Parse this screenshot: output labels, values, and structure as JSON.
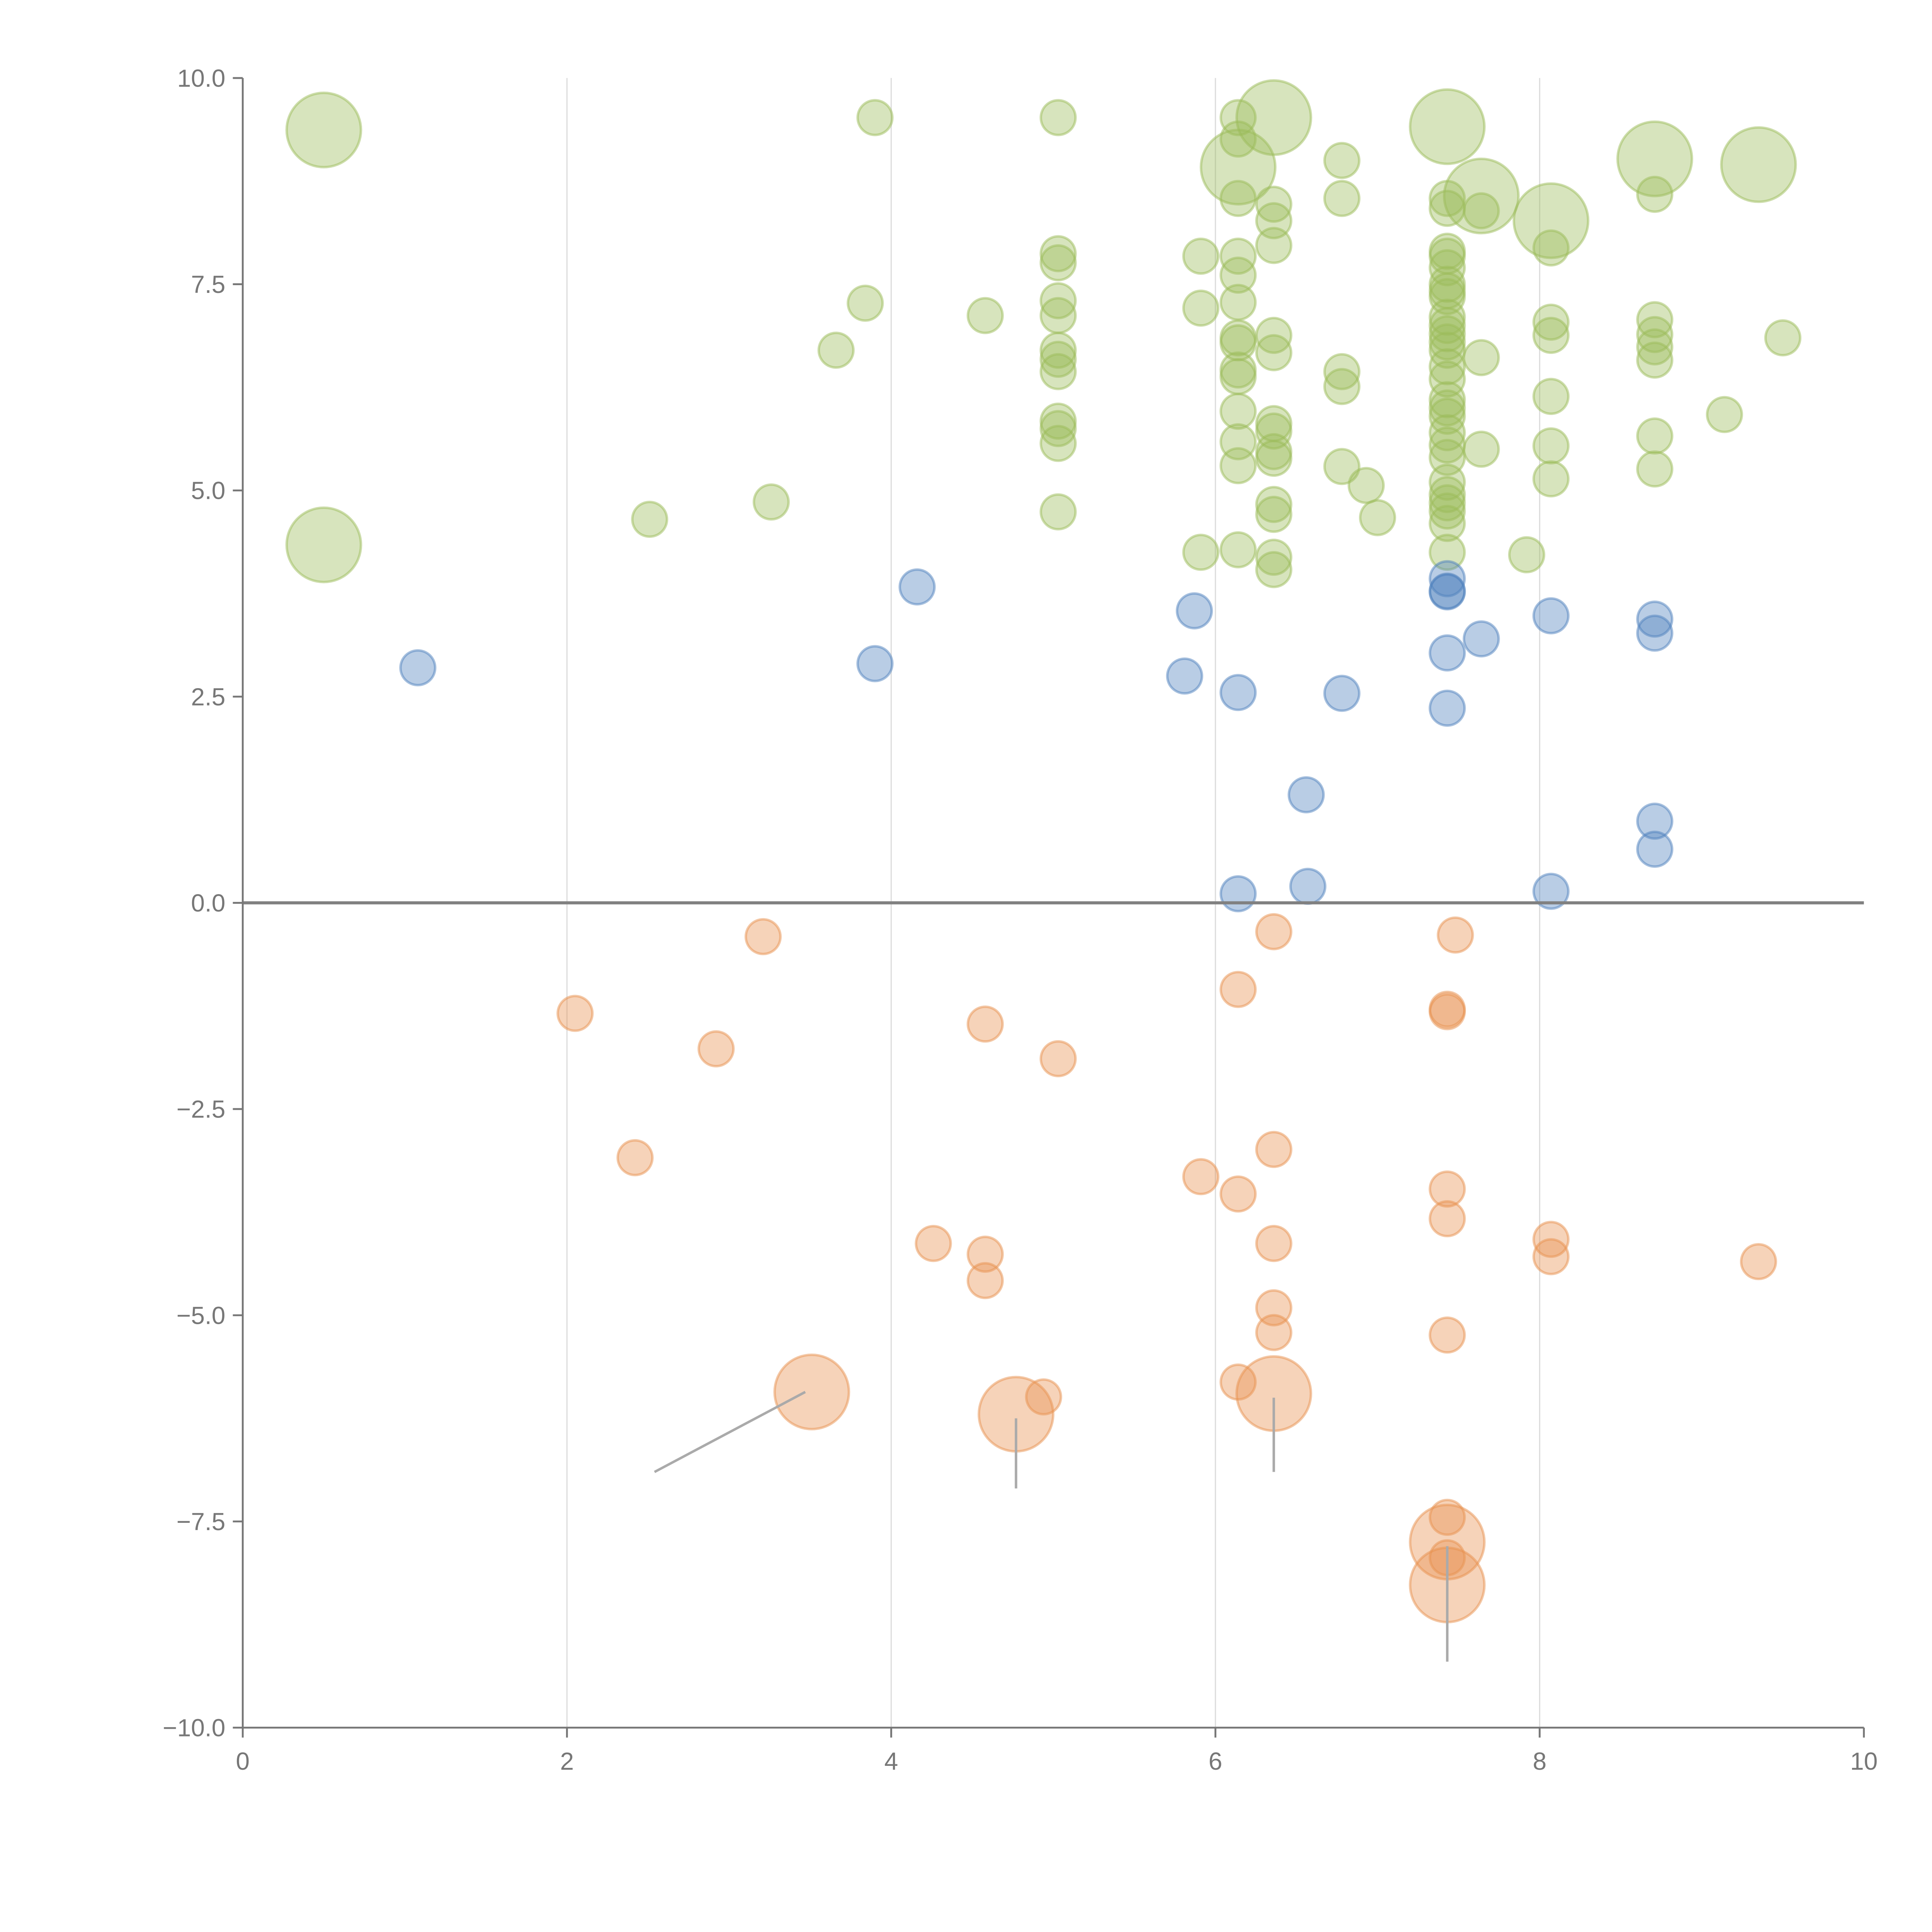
{
  "chart_data": {
    "type": "scatter",
    "title": "",
    "xlabel": "",
    "ylabel": "",
    "xlim": [
      0,
      10
    ],
    "ylim": [
      -10,
      10
    ],
    "grid": "vertical",
    "x_ticks": [
      "0",
      "2",
      "4",
      "6",
      "8",
      "10"
    ],
    "x_tick_values": [
      0,
      2,
      4,
      6,
      8,
      10
    ],
    "y_ticks": [
      "10.0",
      "7.5",
      "5.0",
      "2.5",
      "0.0",
      "−2.5",
      "−5.0",
      "−7.5",
      "−10.0"
    ],
    "y_tick_values": [
      10,
      7.5,
      5,
      2.5,
      0,
      -2.5,
      -5,
      -7.5,
      -10
    ],
    "point_format": "[x, y, size_class (1=small, 2=large)]",
    "series": [
      {
        "name": "green",
        "color": "#9BBB59",
        "points": [
          [
            0.5,
            9.37,
            2
          ],
          [
            0.5,
            4.34,
            2
          ],
          [
            6.36,
            9.52,
            2
          ],
          [
            6.14,
            8.92,
            2
          ],
          [
            7.43,
            9.41,
            2
          ],
          [
            7.64,
            8.57,
            2
          ],
          [
            8.07,
            8.27,
            2
          ],
          [
            8.71,
            9.02,
            2
          ],
          [
            9.35,
            8.95,
            2
          ],
          [
            3.9,
            9.52,
            1
          ],
          [
            5.03,
            9.52,
            1
          ],
          [
            6.14,
            9.52,
            1
          ],
          [
            6.14,
            9.26,
            1
          ],
          [
            6.78,
            9.0,
            1
          ],
          [
            6.78,
            8.54,
            1
          ],
          [
            6.14,
            8.54,
            1
          ],
          [
            6.36,
            8.47,
            1
          ],
          [
            6.36,
            8.27,
            1
          ],
          [
            7.43,
            8.54,
            1
          ],
          [
            7.43,
            8.42,
            1
          ],
          [
            7.64,
            8.39,
            1
          ],
          [
            8.07,
            7.94,
            1
          ],
          [
            8.71,
            8.59,
            1
          ],
          [
            6.36,
            7.97,
            1
          ],
          [
            5.91,
            7.84,
            1
          ],
          [
            6.14,
            7.84,
            1
          ],
          [
            6.14,
            7.61,
            1
          ],
          [
            5.03,
            7.87,
            1
          ],
          [
            5.03,
            7.76,
            1
          ],
          [
            3.84,
            7.27,
            1
          ],
          [
            4.58,
            7.12,
            1
          ],
          [
            5.03,
            7.3,
            1
          ],
          [
            5.03,
            7.12,
            1
          ],
          [
            5.91,
            7.21,
            1
          ],
          [
            6.14,
            7.28,
            1
          ],
          [
            3.66,
            6.7,
            1
          ],
          [
            5.03,
            6.7,
            1
          ],
          [
            5.03,
            6.59,
            1
          ],
          [
            5.03,
            6.44,
            1
          ],
          [
            6.14,
            6.85,
            1
          ],
          [
            6.14,
            6.79,
            1
          ],
          [
            6.36,
            6.88,
            1
          ],
          [
            6.36,
            6.67,
            1
          ],
          [
            6.14,
            6.46,
            1
          ],
          [
            6.14,
            6.38,
            1
          ],
          [
            6.78,
            6.44,
            1
          ],
          [
            6.78,
            6.26,
            1
          ],
          [
            7.64,
            6.61,
            1
          ],
          [
            8.07,
            7.04,
            1
          ],
          [
            8.07,
            6.88,
            1
          ],
          [
            8.71,
            7.07,
            1
          ],
          [
            8.71,
            6.89,
            1
          ],
          [
            8.71,
            6.74,
            1
          ],
          [
            8.71,
            6.58,
            1
          ],
          [
            9.5,
            6.85,
            1
          ],
          [
            8.07,
            6.14,
            1
          ],
          [
            9.14,
            5.92,
            1
          ],
          [
            5.03,
            5.84,
            1
          ],
          [
            5.03,
            5.75,
            1
          ],
          [
            5.03,
            5.57,
            1
          ],
          [
            6.14,
            5.96,
            1
          ],
          [
            6.14,
            5.59,
            1
          ],
          [
            6.14,
            5.3,
            1
          ],
          [
            6.36,
            5.81,
            1
          ],
          [
            6.36,
            5.72,
            1
          ],
          [
            6.36,
            5.47,
            1
          ],
          [
            6.36,
            5.39,
            1
          ],
          [
            7.64,
            5.5,
            1
          ],
          [
            8.07,
            5.54,
            1
          ],
          [
            8.71,
            5.66,
            1
          ],
          [
            8.71,
            5.26,
            1
          ],
          [
            8.07,
            5.14,
            1
          ],
          [
            6.78,
            5.29,
            1
          ],
          [
            6.93,
            5.06,
            1
          ],
          [
            7.0,
            4.67,
            1
          ],
          [
            6.36,
            4.83,
            1
          ],
          [
            6.36,
            4.71,
            1
          ],
          [
            5.03,
            4.74,
            1
          ],
          [
            3.26,
            4.86,
            1
          ],
          [
            2.51,
            4.65,
            1
          ],
          [
            5.91,
            4.25,
            1
          ],
          [
            6.14,
            4.28,
            1
          ],
          [
            6.36,
            4.19,
            1
          ],
          [
            6.36,
            4.04,
            1
          ],
          [
            7.92,
            4.22,
            1
          ],
          [
            7.43,
            7.9,
            1
          ],
          [
            7.43,
            7.84,
            1
          ],
          [
            7.43,
            7.7,
            1
          ],
          [
            7.43,
            7.5,
            1
          ],
          [
            7.43,
            7.42,
            1
          ],
          [
            7.43,
            7.35,
            1
          ],
          [
            7.43,
            7.1,
            1
          ],
          [
            7.43,
            7.0,
            1
          ],
          [
            7.43,
            6.9,
            1
          ],
          [
            7.43,
            6.8,
            1
          ],
          [
            7.43,
            6.7,
            1
          ],
          [
            7.43,
            6.5,
            1
          ],
          [
            7.43,
            6.35,
            1
          ],
          [
            7.43,
            6.1,
            1
          ],
          [
            7.43,
            6.0,
            1
          ],
          [
            7.43,
            5.9,
            1
          ],
          [
            7.43,
            5.7,
            1
          ],
          [
            7.43,
            5.55,
            1
          ],
          [
            7.43,
            5.4,
            1
          ],
          [
            7.43,
            5.1,
            1
          ],
          [
            7.43,
            4.95,
            1
          ],
          [
            7.43,
            4.85,
            1
          ],
          [
            7.43,
            4.75,
            1
          ],
          [
            7.43,
            4.6,
            1
          ],
          [
            7.43,
            4.25,
            1
          ]
        ]
      },
      {
        "name": "blue",
        "color": "#4F81BD",
        "points": [
          [
            1.08,
            2.85,
            1
          ],
          [
            3.9,
            2.9,
            1
          ],
          [
            4.16,
            3.83,
            1
          ],
          [
            5.87,
            3.54,
            1
          ],
          [
            5.81,
            2.75,
            1
          ],
          [
            6.14,
            2.55,
            1
          ],
          [
            6.78,
            2.54,
            1
          ],
          [
            7.43,
            3.93,
            1
          ],
          [
            7.43,
            3.78,
            1
          ],
          [
            7.43,
            3.77,
            1
          ],
          [
            7.43,
            3.03,
            1
          ],
          [
            7.43,
            2.36,
            1
          ],
          [
            7.64,
            3.2,
            1
          ],
          [
            8.07,
            3.48,
            1
          ],
          [
            8.71,
            3.44,
            1
          ],
          [
            8.71,
            3.27,
            1
          ],
          [
            6.56,
            1.31,
            1
          ],
          [
            8.71,
            0.99,
            1
          ],
          [
            8.71,
            0.65,
            1
          ],
          [
            6.14,
            0.11,
            1
          ],
          [
            6.57,
            0.2,
            1
          ],
          [
            8.07,
            0.14,
            1
          ]
        ]
      },
      {
        "name": "orange",
        "color": "#E8924F",
        "points": [
          [
            3.21,
            -0.41,
            1
          ],
          [
            6.36,
            -0.35,
            1
          ],
          [
            7.48,
            -0.39,
            1
          ],
          [
            2.05,
            -1.34,
            1
          ],
          [
            2.92,
            -1.77,
            1
          ],
          [
            4.58,
            -1.47,
            1
          ],
          [
            5.03,
            -1.89,
            1
          ],
          [
            6.14,
            -1.05,
            1
          ],
          [
            7.43,
            -1.29,
            1
          ],
          [
            7.43,
            -1.32,
            1
          ],
          [
            2.42,
            -3.09,
            1
          ],
          [
            6.36,
            -2.99,
            1
          ],
          [
            5.91,
            -3.32,
            1
          ],
          [
            6.14,
            -3.53,
            1
          ],
          [
            7.43,
            -3.47,
            1
          ],
          [
            7.43,
            -3.83,
            1
          ],
          [
            4.26,
            -4.13,
            1
          ],
          [
            4.58,
            -4.26,
            1
          ],
          [
            4.58,
            -4.58,
            1
          ],
          [
            6.36,
            -4.13,
            1
          ],
          [
            8.07,
            -4.08,
            1
          ],
          [
            8.07,
            -4.29,
            1
          ],
          [
            9.35,
            -4.35,
            1
          ],
          [
            6.36,
            -4.91,
            1
          ],
          [
            6.36,
            -5.21,
            1
          ],
          [
            7.43,
            -5.24,
            1
          ],
          [
            6.14,
            -5.81,
            1
          ],
          [
            4.94,
            -5.99,
            1
          ],
          [
            3.51,
            -5.93,
            2
          ],
          [
            4.77,
            -6.2,
            2
          ],
          [
            6.36,
            -5.95,
            2
          ],
          [
            7.43,
            -7.75,
            2
          ],
          [
            7.43,
            -8.27,
            2
          ],
          [
            7.43,
            -7.45,
            1
          ],
          [
            7.43,
            -7.94,
            1
          ]
        ]
      }
    ],
    "leader_lines": [
      {
        "from": [
          3.47,
          -5.93
        ],
        "to": [
          2.54,
          -6.9
        ]
      },
      {
        "from": [
          4.77,
          -6.25
        ],
        "to": [
          4.77,
          -7.1
        ]
      },
      {
        "from": [
          6.36,
          -6.0
        ],
        "to": [
          6.36,
          -6.9
        ]
      },
      {
        "from": [
          7.43,
          -7.8
        ],
        "to": [
          7.43,
          -9.2
        ]
      }
    ],
    "colors": {
      "axis": "#777777",
      "zero_line": "#808080",
      "grid": "#DDDDDD",
      "leader": "#AAAAAA"
    }
  }
}
